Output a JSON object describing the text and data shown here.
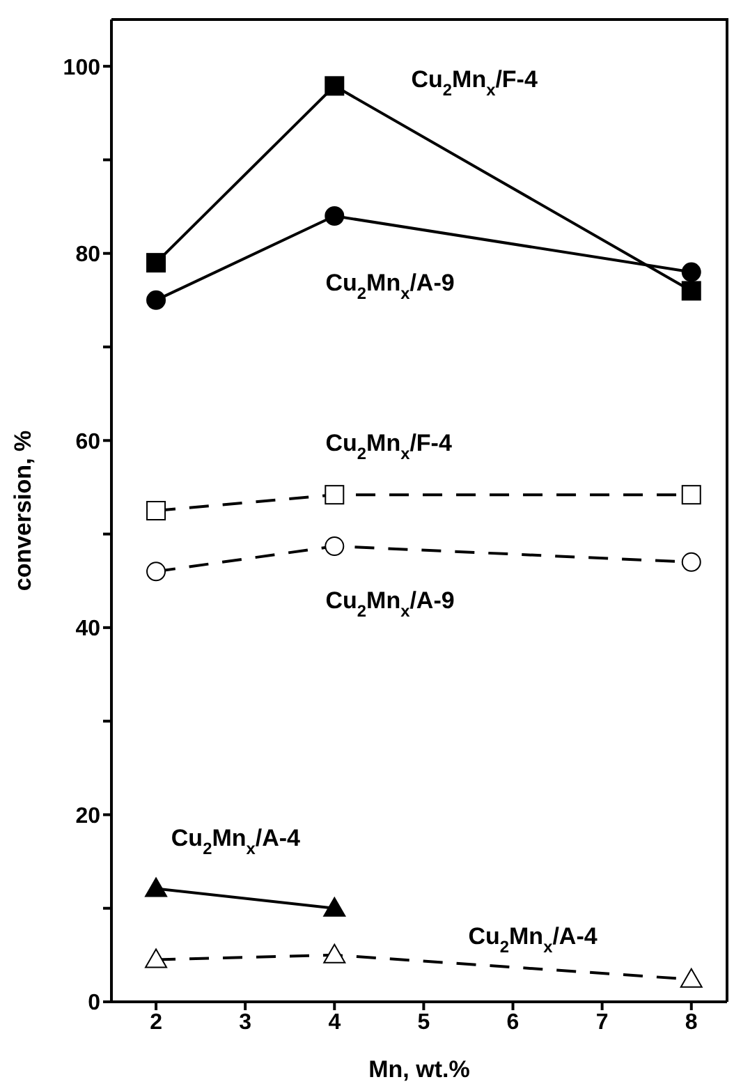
{
  "chart_data": {
    "type": "line",
    "xlabel": "Mn, wt.%",
    "ylabel": "conversion, %",
    "x": [
      2,
      4,
      8
    ],
    "series": [
      {
        "name": "Cu$_{2}$Mn$_{x}$/F-4",
        "color": "#000000",
        "marker": "square",
        "line_style": "solid",
        "values": [
          79,
          97.9,
          76
        ]
      },
      {
        "name": "Cu$_{2}$Mn$_{x}$/A-9",
        "color": "#000000",
        "marker": "circle",
        "line_style": "solid",
        "values": [
          75,
          84,
          78
        ]
      },
      {
        "name": "Cu$_{2}$Mn$_{x}$/F-4",
        "color": "#000000",
        "marker": "square",
        "line_style": "dashed",
        "values": [
          52.5,
          54.2,
          54.2
        ]
      },
      {
        "name": "Cu$_{2}$Mn$_{x}$/A-9",
        "color": "#000000",
        "marker": "circle",
        "line_style": "dashed",
        "values": [
          46,
          48.7,
          47
        ]
      },
      {
        "name": "Cu$_{2}$Mn$_{x}$/A-4",
        "color": "#000000",
        "marker": "triangle",
        "line_style": "solid",
        "values": [
          12.1,
          10,
          null
        ]
      },
      {
        "name": "Cu$_{2}$Mn$_{x}$/A-4",
        "color": "#000000",
        "marker": "triangle",
        "line_style": "dashed",
        "values": [
          4.5,
          5,
          2.4
        ]
      }
    ],
    "xlim": [
      1.5,
      8.4
    ],
    "xticks": [
      2,
      3,
      4,
      5,
      6,
      7,
      8
    ],
    "ylim": [
      0,
      105
    ],
    "yticks": [
      0,
      {
        "value": 10,
        "label": null
      },
      20,
      {
        "value": 30,
        "label": null
      },
      40,
      {
        "value": 50,
        "label": null
      },
      60,
      {
        "value": 70,
        "label": null
      },
      80,
      {
        "value": 90,
        "label": null
      },
      100
    ]
  }
}
